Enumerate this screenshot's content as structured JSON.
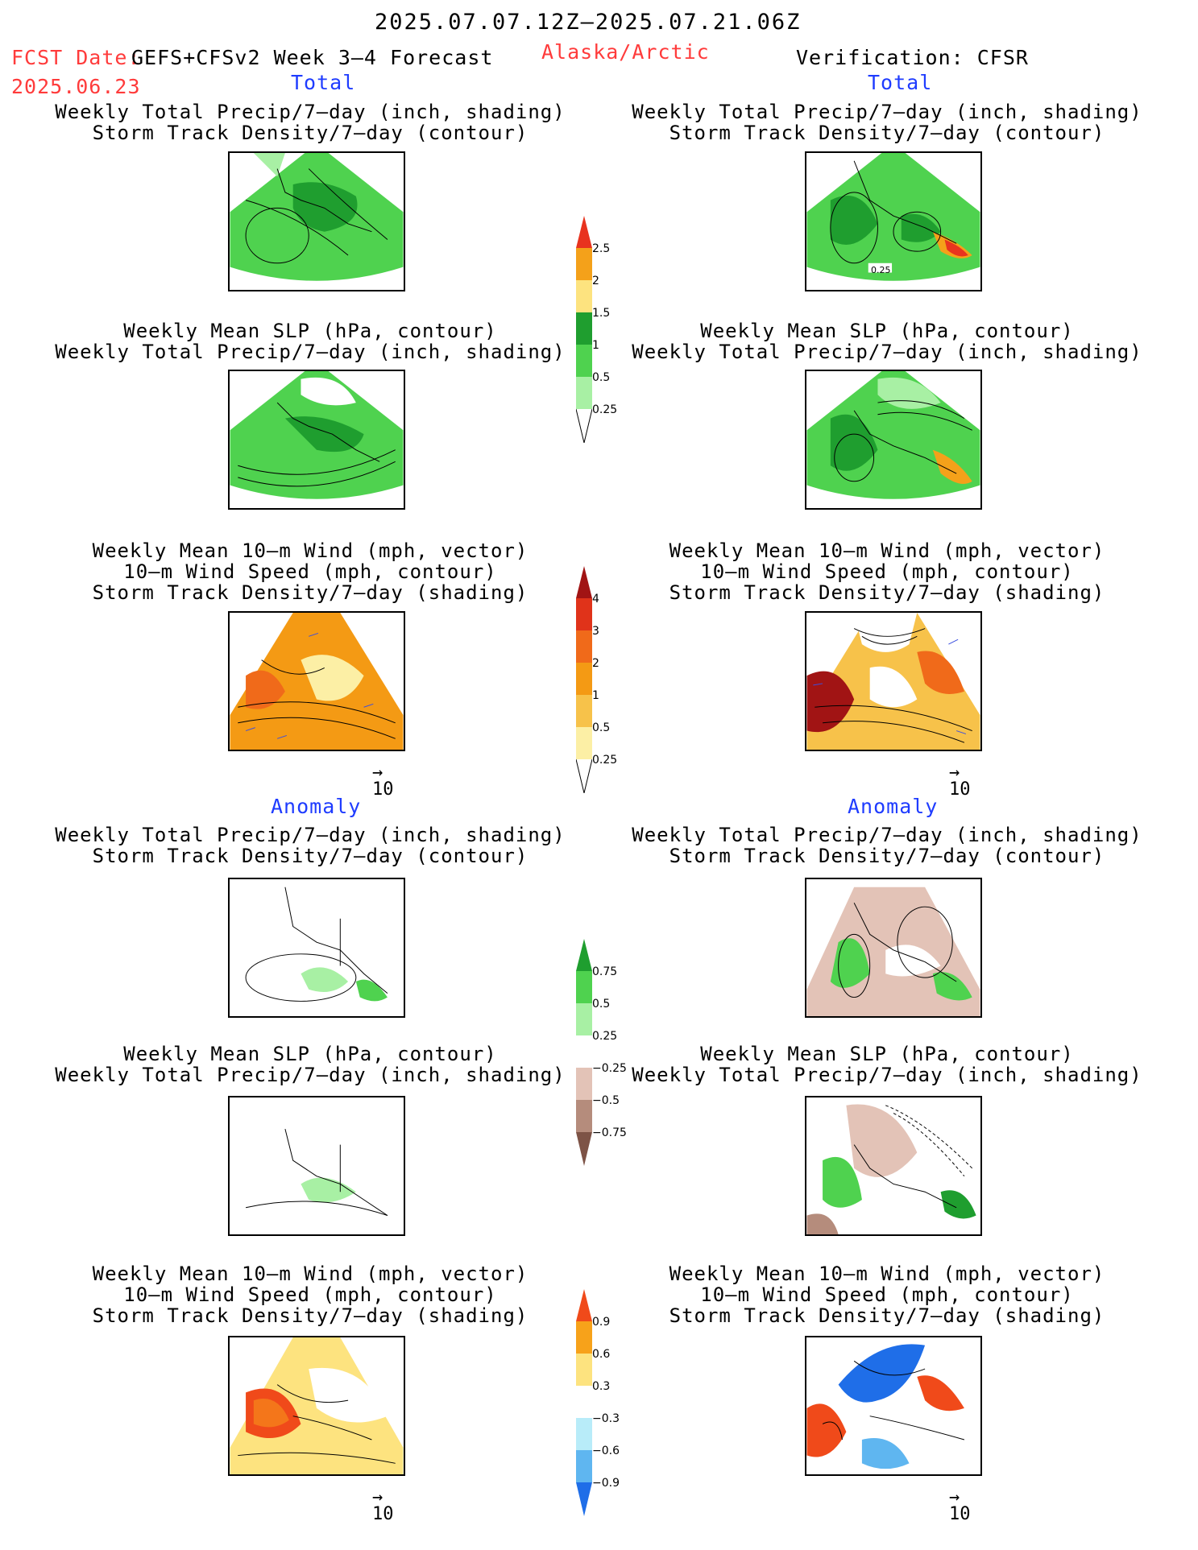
{
  "header": {
    "period": "2025.07.07.12Z–2025.07.21.06Z",
    "fcst_label": "FCST Date:",
    "fcst_model": "GEFS+CFSv2 Week 3–4 Forecast",
    "fcst_date": "2025.06.23",
    "region": "Alaska/Arctic",
    "verification": "Verification: CFSR"
  },
  "columns": [
    {
      "total_label": "Total",
      "anomaly_label": "Anomaly",
      "captions": [
        [
          "Weekly Total Precip/7–day (inch, shading)",
          "Storm Track Density/7–day (contour)",
          ""
        ],
        [
          "Weekly Mean SLP (hPa, contour)",
          "Weekly Total Precip/7–day (inch, shading)",
          ""
        ],
        [
          "Weekly Mean 10–m Wind (mph, vector)",
          "10–m Wind Speed (mph, contour)",
          "Storm Track Density/7–day (shading)"
        ],
        [
          "Weekly Total Precip/7–day (inch, shading)",
          "Storm Track Density/7–day (contour)",
          ""
        ],
        [
          "Weekly Mean SLP (hPa, contour)",
          "Weekly Total Precip/7–day (inch, shading)",
          ""
        ],
        [
          "Weekly Mean 10–m Wind (mph, vector)",
          "10–m Wind Speed (mph, contour)",
          "Storm Track Density/7–day (shading)"
        ]
      ],
      "ref_vector": "10"
    },
    {
      "total_label": "Total",
      "anomaly_label": "Anomaly",
      "captions": [
        [
          "Weekly Total Precip/7–day (inch, shading)",
          "Storm Track Density/7–day (contour)",
          ""
        ],
        [
          "Weekly Mean SLP (hPa, contour)",
          "Weekly Total Precip/7–day (inch, shading)",
          ""
        ],
        [
          "Weekly Mean 10–m Wind (mph, vector)",
          "10–m Wind Speed (mph, contour)",
          "Storm Track Density/7–day (shading)"
        ],
        [
          "Weekly Total Precip/7–day (inch, shading)",
          "Storm Track Density/7–day (contour)",
          ""
        ],
        [
          "Weekly Mean SLP (hPa, contour)",
          "Weekly Total Precip/7–day (inch, shading)",
          ""
        ],
        [
          "Weekly Mean 10–m Wind (mph, vector)",
          "10–m Wind Speed (mph, contour)",
          "Storm Track Density/7–day (shading)"
        ]
      ],
      "ref_vector": "10",
      "contour_label": "0.25"
    }
  ],
  "colorbars": [
    {
      "name": "precip-total",
      "labels": [
        "2.5",
        "2",
        "1.5",
        "1",
        "0.5",
        "0.25"
      ],
      "colors": [
        "#e8331f",
        "#f4a11a",
        "#fde37f",
        "#1f9e2f",
        "#4fd24f",
        "#a8f0a4"
      ]
    },
    {
      "name": "storm-total",
      "labels": [
        "4",
        "3",
        "2",
        "1",
        "0.5",
        "0.25"
      ],
      "colors": [
        "#a11414",
        "#e0331a",
        "#f06a1a",
        "#f49a14",
        "#f7c24a",
        "#fcefa5"
      ]
    },
    {
      "name": "precip-anom",
      "labels": [
        "0.75",
        "0.5",
        "0.25",
        "−0.25",
        "−0.5",
        "−0.75"
      ],
      "colors": [
        "#1f9e2f",
        "#4fd24f",
        "#a8f0a4",
        "#ffffff",
        "#e3c3b7",
        "#b58c7c",
        "#7d5346"
      ]
    },
    {
      "name": "storm-anom",
      "labels": [
        "0.9",
        "0.6",
        "0.3",
        "−0.3",
        "−0.6",
        "−0.9"
      ],
      "colors": [
        "#f04a1a",
        "#f7a21a",
        "#fde37f",
        "#ffffff",
        "#b8ecf9",
        "#5fb6f0",
        "#1f6ee8"
      ]
    }
  ]
}
